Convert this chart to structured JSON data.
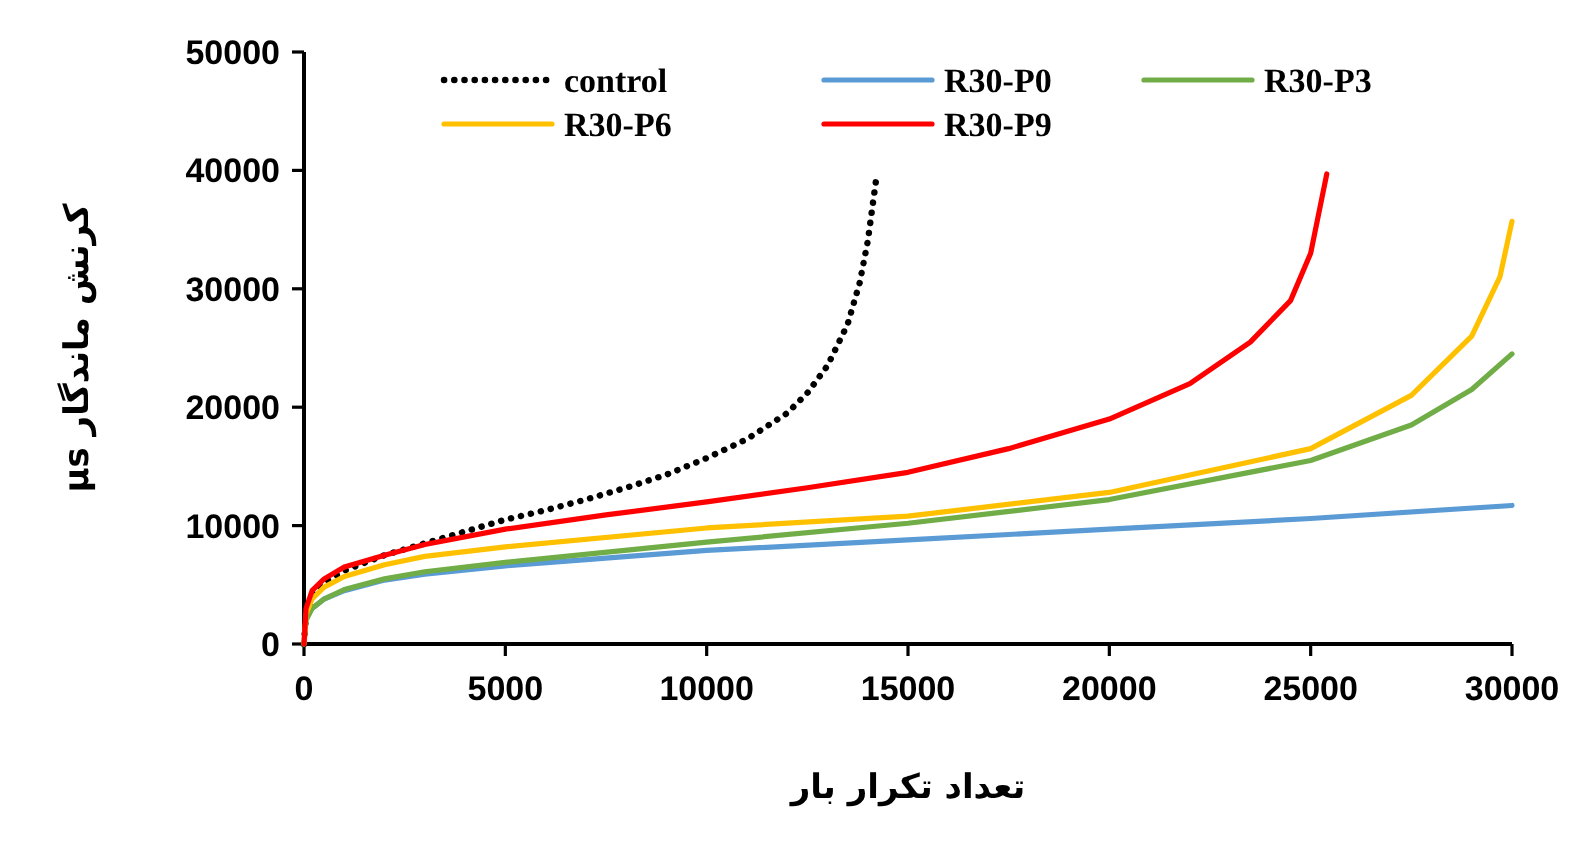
{
  "chart_data": {
    "type": "line",
    "xlabel": "تعداد تکرار بار",
    "ylabel": "کرنش ماندگار µs",
    "xlim": [
      0,
      30000
    ],
    "ylim": [
      0,
      50000
    ],
    "xticks": [
      0,
      5000,
      10000,
      15000,
      20000,
      25000,
      30000
    ],
    "yticks": [
      0,
      10000,
      20000,
      30000,
      40000,
      50000
    ],
    "grid": false,
    "legend": "top",
    "series": [
      {
        "name": "control",
        "color": "#000000",
        "line_style": "dotted",
        "x": [
          0,
          50,
          200,
          500,
          1000,
          2000,
          3000,
          4000,
          5000,
          6000,
          7000,
          8000,
          9000,
          10000,
          11000,
          12000,
          12500,
          13000,
          13500,
          13800,
          14000,
          14200
        ],
        "values": [
          0,
          2500,
          4000,
          5200,
          6200,
          7500,
          8500,
          9500,
          10500,
          11300,
          12200,
          13200,
          14300,
          15700,
          17300,
          19500,
          21200,
          23500,
          27000,
          30500,
          34000,
          39000
        ]
      },
      {
        "name": "R30-P0",
        "color": "#5b9bd5",
        "line_style": "solid",
        "x": [
          200,
          500,
          1000,
          2000,
          3000,
          5000,
          10000,
          15000,
          20000,
          25000,
          30000
        ],
        "values": [
          3000,
          3800,
          4500,
          5400,
          5900,
          6600,
          7900,
          8800,
          9700,
          10600,
          11700
        ]
      },
      {
        "name": "R30-P3",
        "color": "#70ad47",
        "line_style": "solid",
        "x": [
          0,
          50,
          200,
          500,
          1000,
          2000,
          3000,
          5000,
          10000,
          15000,
          20000,
          25000,
          27500,
          29000,
          30000
        ],
        "values": [
          0,
          2000,
          3000,
          3800,
          4600,
          5500,
          6100,
          6900,
          8600,
          10200,
          12200,
          15500,
          18500,
          21500,
          24500
        ]
      },
      {
        "name": "R30-P6",
        "color": "#ffc000",
        "line_style": "solid",
        "x": [
          0,
          50,
          200,
          500,
          1000,
          2000,
          3000,
          5000,
          10000,
          15000,
          20000,
          25000,
          27500,
          29000,
          29700,
          30000
        ],
        "values": [
          0,
          2500,
          3800,
          4800,
          5700,
          6700,
          7400,
          8200,
          9800,
          10800,
          12800,
          16500,
          21000,
          26000,
          31000,
          35700
        ]
      },
      {
        "name": "R30-P9",
        "color": "#ff0000",
        "line_style": "solid",
        "x": [
          0,
          50,
          200,
          500,
          1000,
          2000,
          3000,
          5000,
          7500,
          10000,
          12500,
          15000,
          17500,
          20000,
          22000,
          23500,
          24500,
          25000,
          25400
        ],
        "values": [
          0,
          3000,
          4500,
          5500,
          6500,
          7500,
          8400,
          9700,
          10900,
          12000,
          13200,
          14500,
          16500,
          19000,
          22000,
          25500,
          29000,
          33000,
          39700
        ]
      }
    ]
  }
}
